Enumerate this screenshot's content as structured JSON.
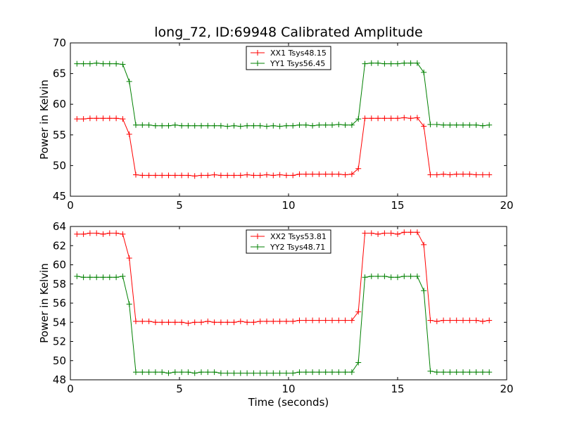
{
  "chart_data": [
    {
      "type": "line",
      "title": "long_72, ID:69948 Calibrated Amplitude",
      "xlabel": "",
      "ylabel": "Power in Kelvin",
      "xlim": [
        0,
        20
      ],
      "ylim": [
        45,
        70
      ],
      "xticks": [
        0,
        5,
        10,
        15,
        20
      ],
      "yticks": [
        45,
        50,
        55,
        60,
        65,
        70
      ],
      "legend_position": "top-center",
      "x": [
        0.3,
        0.6,
        0.9,
        1.2,
        1.5,
        1.8,
        2.1,
        2.4,
        2.7,
        3.0,
        3.3,
        3.6,
        3.9,
        4.2,
        4.5,
        4.8,
        5.1,
        5.4,
        5.7,
        6.0,
        6.3,
        6.6,
        6.9,
        7.2,
        7.5,
        7.8,
        8.1,
        8.4,
        8.7,
        9.0,
        9.3,
        9.6,
        9.9,
        10.2,
        10.5,
        10.8,
        11.1,
        11.4,
        11.7,
        12.0,
        12.3,
        12.6,
        12.9,
        13.2,
        13.5,
        13.8,
        14.1,
        14.4,
        14.7,
        15.0,
        15.3,
        15.6,
        15.9,
        16.2,
        16.5,
        16.8,
        17.1,
        17.4,
        17.7,
        18.0,
        18.3,
        18.6,
        18.9,
        19.2
      ],
      "series": [
        {
          "name": "XX1 Tsys48.15",
          "color": "#ff0000",
          "values": [
            57.6,
            57.6,
            57.7,
            57.7,
            57.7,
            57.7,
            57.7,
            57.6,
            55.1,
            48.5,
            48.4,
            48.4,
            48.4,
            48.4,
            48.4,
            48.4,
            48.4,
            48.4,
            48.3,
            48.4,
            48.4,
            48.5,
            48.4,
            48.4,
            48.4,
            48.4,
            48.5,
            48.4,
            48.4,
            48.5,
            48.4,
            48.5,
            48.4,
            48.4,
            48.6,
            48.6,
            48.6,
            48.6,
            48.6,
            48.6,
            48.6,
            48.5,
            48.6,
            49.5,
            57.7,
            57.7,
            57.7,
            57.7,
            57.7,
            57.7,
            57.8,
            57.7,
            57.8,
            56.4,
            48.5,
            48.5,
            48.6,
            48.5,
            48.6,
            48.6,
            48.6,
            48.5,
            48.5,
            48.5
          ]
        },
        {
          "name": "YY1 Tsys56.45",
          "color": "#008000",
          "values": [
            66.6,
            66.6,
            66.6,
            66.7,
            66.6,
            66.6,
            66.6,
            66.5,
            63.7,
            56.6,
            56.6,
            56.6,
            56.5,
            56.5,
            56.5,
            56.6,
            56.5,
            56.5,
            56.5,
            56.5,
            56.5,
            56.5,
            56.5,
            56.4,
            56.5,
            56.4,
            56.5,
            56.5,
            56.5,
            56.4,
            56.5,
            56.4,
            56.5,
            56.5,
            56.6,
            56.6,
            56.5,
            56.6,
            56.6,
            56.6,
            56.7,
            56.6,
            56.6,
            57.6,
            66.6,
            66.7,
            66.7,
            66.6,
            66.6,
            66.6,
            66.7,
            66.7,
            66.7,
            65.2,
            56.7,
            56.7,
            56.6,
            56.6,
            56.6,
            56.6,
            56.6,
            56.6,
            56.5,
            56.6
          ]
        }
      ]
    },
    {
      "type": "line",
      "title": "",
      "xlabel": "Time (seconds)",
      "ylabel": "Power in Kelvin",
      "xlim": [
        0,
        20
      ],
      "ylim": [
        48,
        64
      ],
      "xticks": [
        0,
        5,
        10,
        15,
        20
      ],
      "yticks": [
        48,
        50,
        52,
        54,
        56,
        58,
        60,
        62,
        64
      ],
      "legend_position": "top-center",
      "x": [
        0.3,
        0.6,
        0.9,
        1.2,
        1.5,
        1.8,
        2.1,
        2.4,
        2.7,
        3.0,
        3.3,
        3.6,
        3.9,
        4.2,
        4.5,
        4.8,
        5.1,
        5.4,
        5.7,
        6.0,
        6.3,
        6.6,
        6.9,
        7.2,
        7.5,
        7.8,
        8.1,
        8.4,
        8.7,
        9.0,
        9.3,
        9.6,
        9.9,
        10.2,
        10.5,
        10.8,
        11.1,
        11.4,
        11.7,
        12.0,
        12.3,
        12.6,
        12.9,
        13.2,
        13.5,
        13.8,
        14.1,
        14.4,
        14.7,
        15.0,
        15.3,
        15.6,
        15.9,
        16.2,
        16.5,
        16.8,
        17.1,
        17.4,
        17.7,
        18.0,
        18.3,
        18.6,
        18.9,
        19.2
      ],
      "series": [
        {
          "name": "XX2 Tsys53.81",
          "color": "#ff0000",
          "values": [
            63.2,
            63.2,
            63.3,
            63.3,
            63.2,
            63.3,
            63.3,
            63.2,
            60.7,
            54.1,
            54.1,
            54.1,
            54.0,
            54.0,
            54.0,
            54.0,
            54.0,
            53.9,
            54.0,
            54.0,
            54.1,
            54.0,
            54.0,
            54.0,
            54.0,
            54.1,
            54.0,
            54.0,
            54.1,
            54.1,
            54.1,
            54.1,
            54.1,
            54.1,
            54.2,
            54.2,
            54.2,
            54.2,
            54.2,
            54.2,
            54.2,
            54.2,
            54.2,
            55.1,
            63.3,
            63.3,
            63.2,
            63.3,
            63.3,
            63.2,
            63.4,
            63.4,
            63.4,
            62.1,
            54.2,
            54.1,
            54.2,
            54.2,
            54.2,
            54.2,
            54.2,
            54.2,
            54.1,
            54.2
          ]
        },
        {
          "name": "YY2 Tsys48.71",
          "color": "#008000",
          "values": [
            58.8,
            58.7,
            58.7,
            58.7,
            58.7,
            58.7,
            58.7,
            58.8,
            55.9,
            48.8,
            48.8,
            48.8,
            48.8,
            48.8,
            48.7,
            48.8,
            48.8,
            48.8,
            48.7,
            48.8,
            48.8,
            48.8,
            48.7,
            48.7,
            48.7,
            48.7,
            48.7,
            48.7,
            48.7,
            48.7,
            48.7,
            48.7,
            48.7,
            48.7,
            48.8,
            48.8,
            48.8,
            48.8,
            48.8,
            48.8,
            48.8,
            48.8,
            48.8,
            49.8,
            58.7,
            58.8,
            58.8,
            58.8,
            58.7,
            58.7,
            58.8,
            58.8,
            58.8,
            57.3,
            48.9,
            48.8,
            48.8,
            48.8,
            48.8,
            48.8,
            48.8,
            48.8,
            48.8,
            48.8
          ]
        }
      ]
    }
  ]
}
